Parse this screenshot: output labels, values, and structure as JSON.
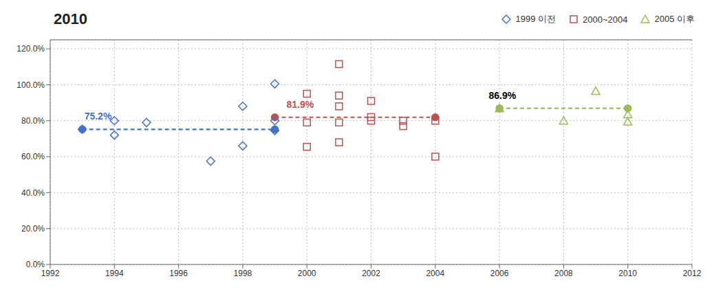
{
  "chart_data": {
    "type": "scatter",
    "title": "2010",
    "xlim": [
      1992,
      2012
    ],
    "xticks": [
      1992,
      1994,
      1996,
      1998,
      2000,
      2002,
      2004,
      2006,
      2008,
      2010,
      2012
    ],
    "ylim": [
      0.0,
      1.25
    ],
    "yticks": [
      {
        "value": 0.0,
        "label": "0.0%"
      },
      {
        "value": 0.2,
        "label": "20.0%"
      },
      {
        "value": 0.4,
        "label": "40.0%"
      },
      {
        "value": 0.6,
        "label": "60.0%"
      },
      {
        "value": 0.8,
        "label": "80.0%"
      },
      {
        "value": 1.0,
        "label": "100.0%"
      },
      {
        "value": 1.2,
        "label": "120.0%"
      }
    ],
    "grid": true,
    "legend": "top right",
    "series": [
      {
        "name": "1999 이전",
        "color": "#4472C4",
        "marker": "diamond",
        "x": [
          1993,
          1994,
          1994,
          1995,
          1997,
          1998,
          1998,
          1999,
          1999,
          1999
        ],
        "values": [
          0.752,
          0.8,
          0.72,
          0.79,
          0.575,
          0.66,
          0.88,
          1.005,
          0.8,
          0.745
        ]
      },
      {
        "type": "line",
        "color": "#4472C4",
        "line_style": "dashed",
        "marker": "circle",
        "x": [
          1993,
          1999
        ],
        "values": [
          0.752,
          0.752
        ]
      },
      {
        "name": "2000~2004",
        "color": "#C0504D",
        "marker": "square",
        "x": [
          2000,
          2000,
          2000,
          2001,
          2001,
          2001,
          2001,
          2001,
          2002,
          2002,
          2002,
          2003,
          2003,
          2004,
          2004
        ],
        "values": [
          0.95,
          0.79,
          0.655,
          1.115,
          0.94,
          0.88,
          0.79,
          0.68,
          0.91,
          0.82,
          0.8,
          0.77,
          0.8,
          0.6,
          0.8
        ]
      },
      {
        "type": "line",
        "color": "#C0504D",
        "line_style": "dashed",
        "marker": "circle",
        "x": [
          1999,
          2004
        ],
        "values": [
          0.819,
          0.819
        ]
      },
      {
        "name": "2005 이후",
        "color": "#9BBB59",
        "marker": "triangle",
        "x": [
          2006,
          2008,
          2009,
          2010,
          2010
        ],
        "values": [
          0.869,
          0.8,
          0.965,
          0.835,
          0.795
        ]
      },
      {
        "type": "line",
        "color": "#9BBB59",
        "line_style": "dashed",
        "marker": "circle",
        "x": [
          2006,
          2010
        ],
        "values": [
          0.869,
          0.869
        ]
      }
    ],
    "annotations": [
      {
        "text": "75.2%",
        "x": 1993.0,
        "y": 0.752,
        "color": "#4472C4"
      },
      {
        "text": "81.9%",
        "x": 1999.3,
        "y": 0.819,
        "color": "#C0504D"
      },
      {
        "text": "86.9%",
        "x": 2005.6,
        "y": 0.869,
        "color": "#000000"
      }
    ]
  }
}
